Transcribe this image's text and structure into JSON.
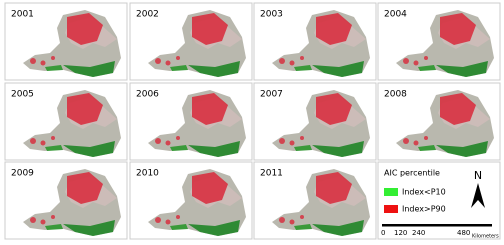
{
  "panels": [
    "2001",
    "2002",
    "2003",
    "2004",
    "2005",
    "2006",
    "2007",
    "2008",
    "2009",
    "2010",
    "2011"
  ],
  "legend": {
    "title": "AIC percentile",
    "items": [
      {
        "label": "Index<P10",
        "color": "#33ee33"
      },
      {
        "label": "Index>P90",
        "color": "#ee1111"
      }
    ]
  },
  "north_arrow": "N",
  "scale_bar": {
    "labels": [
      "0",
      "120",
      "240",
      "480"
    ],
    "unit": "Kilometers"
  }
}
